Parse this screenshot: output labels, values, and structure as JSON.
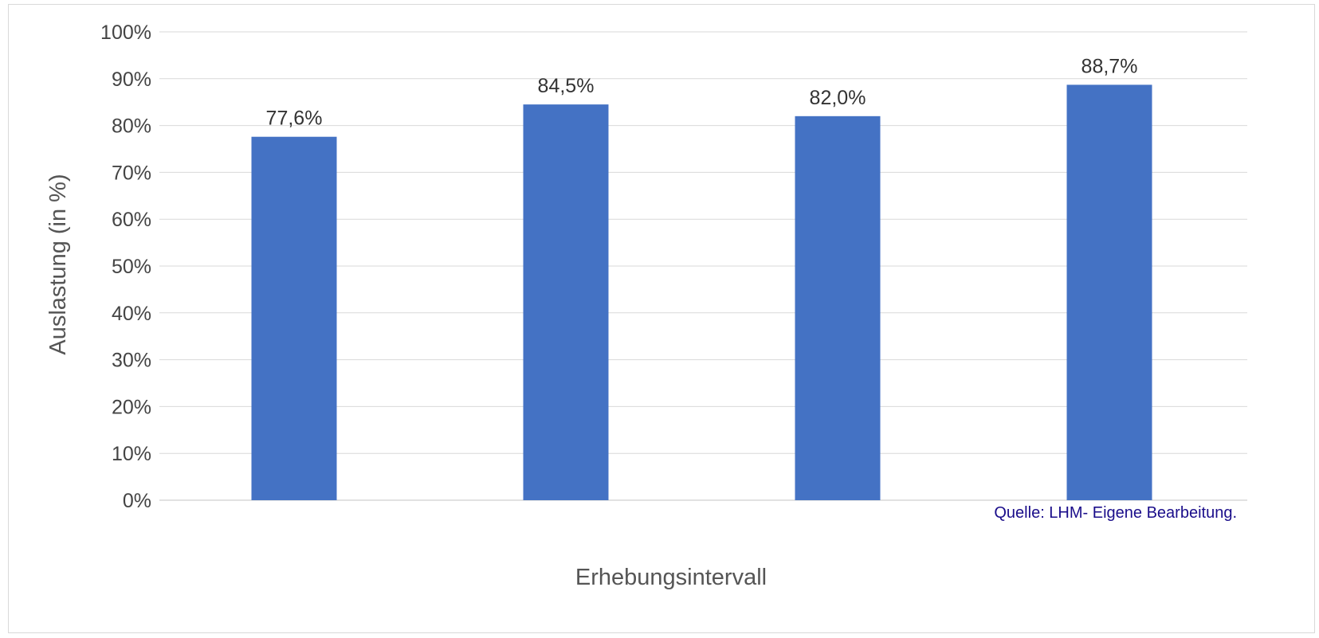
{
  "chart_data": {
    "type": "bar",
    "categories": [
      "",
      "",
      "",
      ""
    ],
    "values": [
      77.6,
      84.5,
      82.0,
      88.7
    ],
    "data_labels": [
      "77,6%",
      "84,5%",
      "82,0%",
      "88,7%"
    ],
    "title": "",
    "xlabel": "Erhebungsintervall",
    "ylabel": "Auslastung (in %)",
    "ylim": [
      0,
      100
    ],
    "yticks": [
      0,
      10,
      20,
      30,
      40,
      50,
      60,
      70,
      80,
      90,
      100
    ],
    "ytick_labels": [
      "0%",
      "10%",
      "20%",
      "30%",
      "40%",
      "50%",
      "60%",
      "70%",
      "80%",
      "90%",
      "100%"
    ],
    "grid": true,
    "legend": "none",
    "bar_color": "#4472c4",
    "gridline_color": "#d9d9d9"
  },
  "source_note": "Quelle: LHM- Eigene Bearbeitung."
}
